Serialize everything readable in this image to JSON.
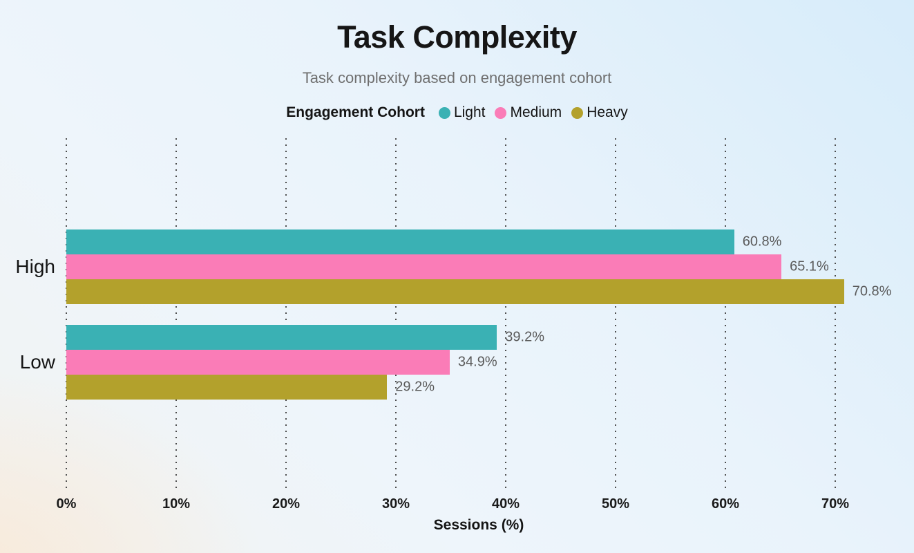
{
  "title": "Task Complexity",
  "subtitle": "Task complexity based on engagement cohort",
  "legend": {
    "title": "Engagement Cohort"
  },
  "chart_data": {
    "type": "bar",
    "orientation": "horizontal",
    "title": "Task Complexity",
    "subtitle": "Task complexity based on engagement cohort",
    "xlabel": "Sessions (%)",
    "ylabel": "",
    "categories": [
      "High",
      "Low"
    ],
    "series": [
      {
        "name": "Light",
        "color": "#3ab1b4",
        "values": [
          60.8,
          39.2
        ],
        "labels": [
          "60.8%",
          "39.2%"
        ]
      },
      {
        "name": "Medium",
        "color": "#fa7cb7",
        "values": [
          65.1,
          34.9
        ],
        "labels": [
          "65.1%",
          "34.9%"
        ]
      },
      {
        "name": "Heavy",
        "color": "#b3a12c",
        "values": [
          70.8,
          29.2
        ],
        "labels": [
          "70.8%",
          "29.2%"
        ]
      }
    ],
    "x_ticks": [
      0,
      10,
      20,
      30,
      40,
      50,
      60,
      70
    ],
    "x_tick_labels": [
      "0%",
      "10%",
      "20%",
      "30%",
      "40%",
      "50%",
      "60%",
      "70%"
    ],
    "xlim": [
      0,
      70
    ],
    "grid": "vertical-dotted",
    "legend_position": "top",
    "value_labels": "outside-end"
  }
}
